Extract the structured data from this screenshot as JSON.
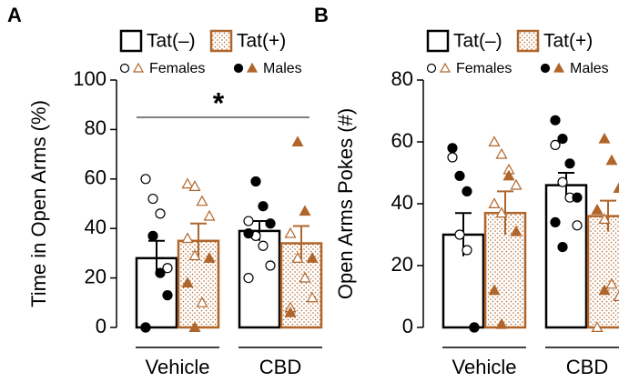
{
  "chart_data": [
    {
      "type": "bar",
      "panel_label": "A",
      "y_label": "Time in Open Arms (%)",
      "categories": [
        "Vehicle",
        "CBD"
      ],
      "ylim": [
        0,
        100
      ],
      "yticks": [
        0,
        20,
        40,
        60,
        80,
        100
      ],
      "annotation": "*",
      "point_legend": [
        "Females",
        "Males"
      ],
      "series": [
        {
          "name": "Tat(–)",
          "color": "#000000",
          "values": [
            28,
            39
          ],
          "errors": [
            7,
            4
          ],
          "females": [
            [
              60,
              52,
              46,
              24,
              0
            ],
            [
              43,
              37,
              33,
              25,
              20
            ]
          ],
          "males": [
            [
              37,
              22,
              13,
              0
            ],
            [
              59,
              49,
              42,
              38
            ]
          ]
        },
        {
          "name": "Tat(+)",
          "color": "#b0652a",
          "values": [
            35,
            34
          ],
          "errors": [
            7,
            7
          ],
          "females": [
            [
              58,
              57,
              51,
              45,
              36,
              29,
              10
            ],
            [
              38,
              28,
              20,
              12,
              8
            ]
          ],
          "males": [
            [
              28,
              18,
              0
            ],
            [
              75,
              47,
              28,
              6
            ]
          ]
        }
      ]
    },
    {
      "type": "bar",
      "panel_label": "B",
      "y_label": "Open Arms Pokes (#)",
      "categories": [
        "Vehicle",
        "CBD"
      ],
      "ylim": [
        0,
        80
      ],
      "yticks": [
        0,
        20,
        40,
        60,
        80
      ],
      "point_legend": [
        "Females",
        "Males"
      ],
      "series": [
        {
          "name": "Tat(–)",
          "color": "#000000",
          "values": [
            30,
            46
          ],
          "errors": [
            7,
            4
          ],
          "females": [
            [
              55,
              30,
              25,
              0
            ],
            [
              59,
              47,
              42,
              33
            ]
          ],
          "males": [
            [
              58,
              49,
              44,
              0
            ],
            [
              67,
              61,
              53,
              42,
              34,
              26
            ]
          ]
        },
        {
          "name": "Tat(+)",
          "color": "#b0652a",
          "values": [
            37,
            36
          ],
          "errors": [
            7,
            5
          ],
          "females": [
            [
              60,
              56,
              51,
              46,
              40,
              37
            ],
            [
              38,
              35,
              14,
              10,
              0
            ]
          ],
          "males": [
            [
              49,
              31,
              12,
              1
            ],
            [
              61,
              54,
              45,
              38,
              12
            ]
          ]
        }
      ]
    }
  ]
}
